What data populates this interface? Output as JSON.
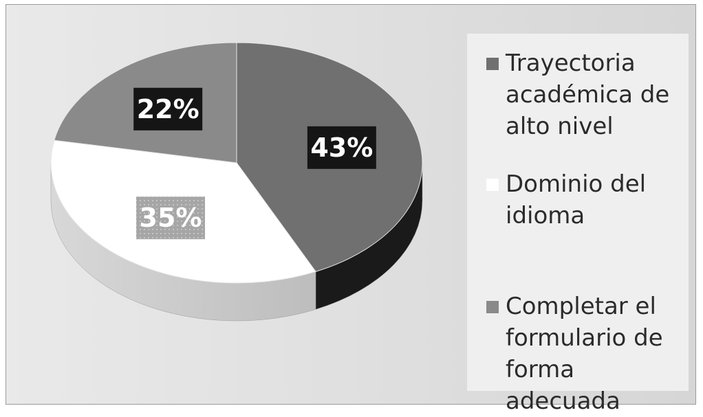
{
  "chart_data": {
    "type": "pie",
    "title": "",
    "categories": [
      "Trayectoria académica de alto nivel",
      "Dominio del idioma",
      "Completar el formulario de forma adecuada"
    ],
    "values": [
      43,
      35,
      22
    ],
    "data_labels": [
      "43%",
      "35%",
      "22%"
    ],
    "legend_position": "right",
    "three_d": true,
    "colors": [
      "#707070",
      "#ffffff",
      "#8a8a8a"
    ],
    "label_box_colors": [
      "#151515",
      "#a6a6a6",
      "#151515"
    ]
  }
}
